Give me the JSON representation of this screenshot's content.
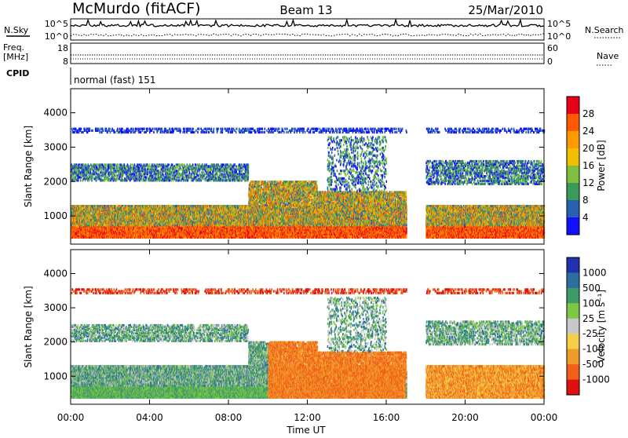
{
  "header": {
    "title": "McMurdo (fitACF)",
    "beam": "Beam 13",
    "date": "25/Mar/2010"
  },
  "top_panels": {
    "nsky_label": "N.Sky",
    "nsearch_label": "N.Search",
    "n_ticks": [
      "10^5",
      "10^0"
    ],
    "freq_label_1": "Freq.",
    "freq_label_2": "[MHz]",
    "freq_ticks": [
      "18",
      "8"
    ],
    "nave_label": "Nave",
    "nave_ticks": [
      "60",
      "0"
    ],
    "cpid_label": "CPID",
    "cpid_text": "normal (fast) 151"
  },
  "chart_data": [
    {
      "type": "heatmap",
      "name": "power-panel",
      "ylabel": "Slant Range [km]",
      "ylim": [
        180,
        4700
      ],
      "yticks": [
        1000,
        2000,
        3000,
        4000
      ],
      "colorbar": {
        "label": "Power [dB]",
        "ticks": [
          "28",
          "24",
          "20",
          "16",
          "12",
          "8",
          "4"
        ],
        "colors": [
          "#e8001a",
          "#ff5a00",
          "#ff9a00",
          "#f0c000",
          "#7fc040",
          "#3a9a58",
          "#2860b0",
          "#1010ff"
        ]
      }
    },
    {
      "type": "heatmap",
      "name": "velocity-panel",
      "ylabel": "Slant Range [km]",
      "ylim": [
        180,
        4700
      ],
      "yticks": [
        1000,
        2000,
        3000,
        4000
      ],
      "colorbar": {
        "label": "Velocity [m s⁻¹]",
        "ticks": [
          "1000",
          "500",
          "100",
          "25",
          "-25",
          "-100",
          "-500",
          "-1000"
        ],
        "colors": [
          "#2030b0",
          "#2b6fa0",
          "#3f9a6a",
          "#7cc845",
          "#c8c8c8",
          "#f5cf4a",
          "#f29a2a",
          "#f0601a",
          "#e01010"
        ]
      }
    }
  ],
  "time_axis": {
    "label": "Time UT",
    "ticks": [
      "00:00",
      "04:00",
      "08:00",
      "12:00",
      "16:00",
      "20:00",
      "00:00"
    ]
  }
}
